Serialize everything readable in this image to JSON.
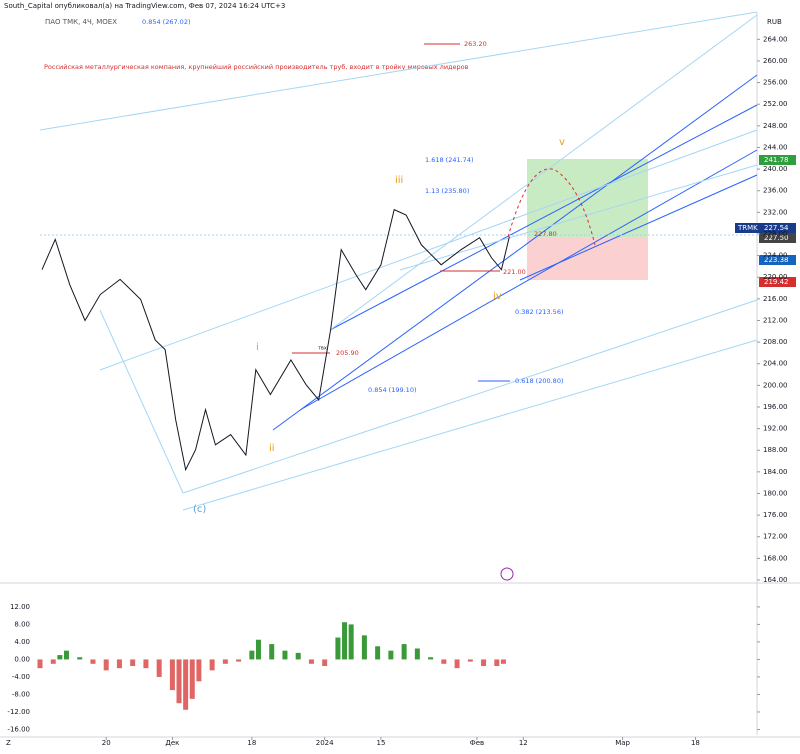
{
  "header": {
    "author_line": "South_Capital опубликовал(а) на TradingView.com, Фев 07, 2024 16:24 UTC+3",
    "currency": "RUB",
    "footer_left": "Z"
  },
  "chart_data": [
    {
      "type": "line",
      "title": "ПАО ТМК, 4Ч, MOEX",
      "x": [
        0.3,
        2.3,
        4.5,
        6.8,
        9.1,
        12.1,
        15.2,
        17.4,
        18.9,
        20.5,
        22,
        23.5,
        25,
        26.5,
        28.8,
        31.1,
        32.6,
        34.8,
        37.9,
        40.2,
        42.1,
        43.9,
        45.5,
        47.7,
        49.2,
        51.5,
        53.5,
        55.3,
        57.6,
        60.6,
        63.6,
        66.4,
        68.2,
        69.7,
        70.9
      ],
      "series": [
        {
          "color": "#131722",
          "values": [
            221.4,
            227,
            218.6,
            212,
            216.8,
            219.6,
            215.9,
            208.4,
            206.6,
            193.6,
            184.4,
            188.1,
            195.5,
            189,
            190.9,
            187.1,
            202.9,
            198.3,
            204.7,
            200.1,
            197.3,
            210.3,
            225.1,
            220.5,
            217.7,
            222.3,
            232.5,
            231.5,
            226,
            222.3,
            225.1,
            227.3,
            223.6,
            221.4,
            227.5
          ]
        }
      ],
      "xlim": [
        0,
        108
      ],
      "ylim": [
        164,
        268.5
      ],
      "xticks": [
        {
          "value": 10,
          "label": "20"
        },
        {
          "value": 20,
          "label": "Дек"
        },
        {
          "value": 32,
          "label": "18"
        },
        {
          "value": 43,
          "label": "2024"
        },
        {
          "value": 51.5,
          "label": "15"
        },
        {
          "value": 66,
          "label": "Фев"
        },
        {
          "value": 73,
          "label": "12"
        },
        {
          "value": 88,
          "label": "Мар"
        },
        {
          "value": 99,
          "label": "18"
        }
      ],
      "yticks": [
        {
          "value": 164,
          "label": "164.00"
        },
        {
          "value": 168,
          "label": "168.00"
        },
        {
          "value": 172,
          "label": "172.00"
        },
        {
          "value": 176,
          "label": "176.00"
        },
        {
          "value": 180,
          "label": "180.00"
        },
        {
          "value": 184,
          "label": "184.00"
        },
        {
          "value": 188,
          "label": "188.00"
        },
        {
          "value": 192,
          "label": "192.00"
        },
        {
          "value": 196,
          "label": "196.00"
        },
        {
          "value": 200,
          "label": "200.00"
        },
        {
          "value": 204,
          "label": "204.00"
        },
        {
          "value": 208,
          "label": "208.00"
        },
        {
          "value": 212,
          "label": "212.00"
        },
        {
          "value": 216,
          "label": "216.00"
        },
        {
          "value": 220,
          "label": "220.00"
        },
        {
          "value": 224,
          "label": "224.00"
        },
        {
          "value": 228,
          "label": "228.00"
        },
        {
          "value": 232,
          "label": "232.00"
        },
        {
          "value": 236,
          "label": "236.00"
        },
        {
          "value": 240,
          "label": "240.00"
        },
        {
          "value": 244,
          "label": "244.00"
        },
        {
          "value": 248,
          "label": "248.00"
        },
        {
          "value": 252,
          "label": "252.00"
        },
        {
          "value": 256,
          "label": "256.00"
        },
        {
          "value": 260,
          "label": "260.00"
        },
        {
          "value": 264,
          "label": "264.00"
        }
      ],
      "grid": false
    },
    {
      "type": "bar",
      "x": [
        0,
        2,
        3,
        4,
        6,
        8,
        10,
        12,
        14,
        16,
        18,
        20,
        21,
        22,
        23,
        24,
        26,
        28,
        30,
        32,
        33,
        35,
        37,
        39,
        41,
        43,
        45,
        46,
        47,
        49,
        51,
        53,
        55,
        57,
        59,
        61,
        63,
        65,
        67,
        69,
        70
      ],
      "values": [
        -2,
        -1,
        1,
        2,
        0.5,
        -1,
        -2.5,
        -2,
        -1.5,
        -2,
        -4,
        -7,
        -10,
        -11.5,
        -9,
        -5,
        -2.5,
        -1,
        -0.5,
        2,
        4.5,
        3.5,
        2,
        1.5,
        -1,
        -1.5,
        5,
        8.5,
        8,
        5.5,
        3,
        2,
        3.5,
        2.5,
        0.5,
        -1,
        -2,
        -0.5,
        -1.5,
        -1.5,
        -1
      ],
      "color_positive": "#3a9a3a",
      "color_negative": "#e06666",
      "xlim": [
        0,
        108
      ],
      "ylim": [
        -17.26,
        17
      ],
      "yticks": [
        {
          "value": 12,
          "label": "12.00"
        },
        {
          "value": 8,
          "label": "8.00"
        },
        {
          "value": 4,
          "label": "4.00"
        },
        {
          "value": 0,
          "label": "0.00"
        },
        {
          "value": -4,
          "label": "-4.00"
        },
        {
          "value": -8,
          "label": "-8.00"
        },
        {
          "value": -12,
          "label": "-12.00"
        },
        {
          "value": -16,
          "label": "-16.00"
        }
      ],
      "grid": false
    }
  ],
  "annotations": {
    "fib_top": "0.854 (267.02)",
    "description": "Российская металлургическая компания, крупнейший российский производитель труб, входит в тройку мировых лидеров",
    "target_high": "263.20",
    "fib_1618": "1.618 (241.74)",
    "fib_113": "1.13 (235.80)",
    "level_2278": "227.80",
    "level_221": "221.00",
    "fib_0382": "0.382 (213.56)",
    "level_2059": "205.90",
    "entry": "твх",
    "fib_0854": "0.854 (199.10)",
    "fib_0618": "0.618 (200.80)",
    "wave_i": "i",
    "wave_ii": "ii",
    "wave_iii": "iii",
    "wave_iv": "iv",
    "wave_v": "v",
    "wave_c": "(c)"
  },
  "price_badges": {
    "symbol": "TRMK",
    "last": "227.54",
    "level": "227.50",
    "target": "241.78",
    "mid": "223.38",
    "stop": "219.42"
  }
}
